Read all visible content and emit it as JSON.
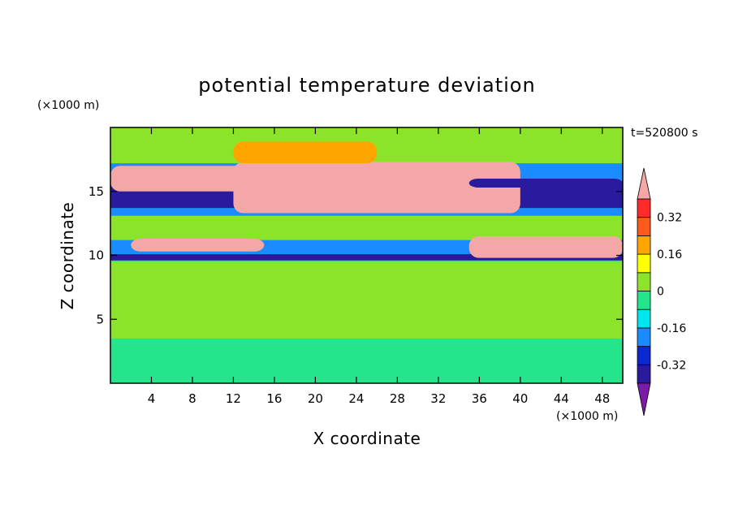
{
  "chart_data": {
    "type": "heatmap",
    "title": "potential temperature deviation",
    "xlabel": "X coordinate",
    "ylabel": "Z coordinate",
    "x_unit": "(×1000 m)",
    "y_unit": "(×1000 m)",
    "time_label": "t=520800 s",
    "xlim": [
      0,
      50
    ],
    "ylim": [
      0,
      20
    ],
    "x_ticks": [
      4,
      8,
      12,
      16,
      20,
      24,
      28,
      32,
      36,
      40,
      44,
      48
    ],
    "y_ticks": [
      5,
      10,
      15
    ],
    "colorbar": {
      "levels": [
        -0.4,
        -0.32,
        -0.24,
        -0.16,
        -0.08,
        0,
        0.08,
        0.16,
        0.24,
        0.32,
        0.4
      ],
      "labels": [
        "0.32",
        "0.16",
        "0",
        "-0.16",
        "-0.32"
      ],
      "label_values": [
        0.32,
        0.16,
        0,
        -0.16,
        -0.32
      ],
      "colors_low_to_high": [
        "#7a1ca8",
        "#2a1a9e",
        "#0a28d2",
        "#1a8cff",
        "#00e6f0",
        "#24e48c",
        "#8ce42a",
        "#ffff00",
        "#ffa500",
        "#ff5a1e",
        "#ff2a2a",
        "#f4a7a7"
      ]
    },
    "regions": [
      {
        "x": [
          0,
          50
        ],
        "z": [
          3.5,
          9.5
        ],
        "value": 0.0
      },
      {
        "x": [
          0,
          50
        ],
        "z": [
          9.6,
          10.1
        ],
        "value": -0.36
      },
      {
        "x": [
          0,
          50
        ],
        "z": [
          10.1,
          11.2
        ],
        "value": -0.2
      },
      {
        "x": [
          0,
          50
        ],
        "z": [
          11.2,
          13.1
        ],
        "value": 0.0
      },
      {
        "x": [
          0,
          50
        ],
        "z": [
          13.1,
          13.7
        ],
        "value": -0.2
      },
      {
        "x": [
          0,
          50
        ],
        "z": [
          13.7,
          15.7
        ],
        "value": -0.36
      },
      {
        "x": [
          0,
          50
        ],
        "z": [
          15.7,
          17.2
        ],
        "value": -0.24
      },
      {
        "x": [
          0,
          50
        ],
        "z": [
          17.2,
          20
        ],
        "value": 0.0
      },
      {
        "x": [
          0,
          13
        ],
        "z": [
          15.0,
          17.0
        ],
        "value": 0.4
      },
      {
        "x": [
          12,
          40
        ],
        "z": [
          13.3,
          17.3
        ],
        "value": 0.4
      },
      {
        "x": [
          35,
          50
        ],
        "z": [
          15.3,
          16.0
        ],
        "value": -0.36
      },
      {
        "x": [
          2,
          15
        ],
        "z": [
          10.3,
          11.3
        ],
        "value": 0.4
      },
      {
        "x": [
          35,
          50
        ],
        "z": [
          9.8,
          11.5
        ],
        "value": 0.4
      },
      {
        "x": [
          12,
          26
        ],
        "z": [
          17.2,
          18.9
        ],
        "value": 0.16
      }
    ]
  }
}
